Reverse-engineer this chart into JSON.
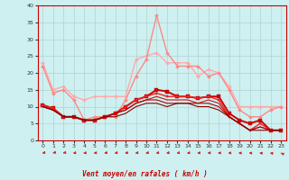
{
  "xlabel": "Vent moyen/en rafales ( km/h )",
  "background_color": "#cff0f0",
  "grid_color": "#aacccc",
  "x": [
    0,
    1,
    2,
    3,
    4,
    5,
    6,
    7,
    8,
    9,
    10,
    11,
    12,
    13,
    14,
    15,
    16,
    17,
    18,
    19,
    20,
    21,
    22,
    23
  ],
  "lines": [
    {
      "y": [
        23,
        15,
        16,
        13,
        12,
        13,
        13,
        13,
        13,
        24,
        25,
        26,
        23,
        23,
        23,
        19,
        21,
        20,
        16,
        10,
        10,
        10,
        10,
        10
      ],
      "color": "#ffaaaa",
      "lw": 1.0,
      "marker": "D",
      "ms": 2.0
    },
    {
      "y": [
        22,
        14,
        15,
        12,
        6,
        7,
        7,
        7,
        12,
        19,
        24,
        37,
        26,
        22,
        22,
        22,
        19,
        20,
        15,
        9,
        7,
        7,
        9,
        10
      ],
      "color": "#ff8888",
      "lw": 1.0,
      "marker": "D",
      "ms": 2.0
    },
    {
      "y": [
        10.5,
        9.5,
        7,
        7,
        6,
        6,
        7,
        8,
        10,
        12,
        13,
        15,
        14.5,
        13,
        13,
        12.5,
        13,
        13,
        8,
        6,
        5,
        6,
        3,
        3
      ],
      "color": "#cc0000",
      "lw": 1.4,
      "marker": "s",
      "ms": 2.2
    },
    {
      "y": [
        10.5,
        9.5,
        7,
        7,
        6,
        6,
        7,
        8,
        10,
        12,
        13,
        14,
        13,
        13,
        13,
        12.5,
        13,
        12,
        7,
        5,
        3,
        5,
        3,
        3
      ],
      "color": "#ee2222",
      "lw": 1.0,
      "marker": "s",
      "ms": 1.8
    },
    {
      "y": [
        10,
        9,
        7,
        7,
        6,
        6,
        7,
        8,
        9,
        11,
        12,
        13,
        12,
        12,
        12,
        11,
        12,
        11,
        7,
        5,
        3,
        4,
        3,
        3
      ],
      "color": "#cc1111",
      "lw": 0.8,
      "marker": null,
      "ms": 0
    },
    {
      "y": [
        10,
        9,
        7,
        7,
        6,
        6,
        7,
        8,
        9,
        11,
        12,
        12,
        11,
        11,
        11,
        11,
        11,
        10,
        7,
        5,
        3,
        4,
        3,
        3
      ],
      "color": "#aa0000",
      "lw": 0.8,
      "marker": null,
      "ms": 0
    },
    {
      "y": [
        10,
        9,
        7,
        7,
        6,
        6,
        7,
        7,
        8,
        10,
        11,
        11,
        10,
        11,
        11,
        10,
        10,
        9,
        7,
        5,
        3,
        3,
        3,
        3
      ],
      "color": "#880000",
      "lw": 0.8,
      "marker": null,
      "ms": 0
    }
  ],
  "arrow_angles": [
    210,
    220,
    215,
    200,
    195,
    200,
    205,
    205,
    205,
    205,
    205,
    205,
    205,
    205,
    200,
    195,
    195,
    190,
    185,
    180,
    170,
    160,
    150,
    130
  ],
  "xlim": [
    -0.5,
    23.5
  ],
  "ylim": [
    0,
    40
  ],
  "yticks": [
    0,
    5,
    10,
    15,
    20,
    25,
    30,
    35,
    40
  ],
  "xticks": [
    0,
    1,
    2,
    3,
    4,
    5,
    6,
    7,
    8,
    9,
    10,
    11,
    12,
    13,
    14,
    15,
    16,
    17,
    18,
    19,
    20,
    21,
    22,
    23
  ]
}
